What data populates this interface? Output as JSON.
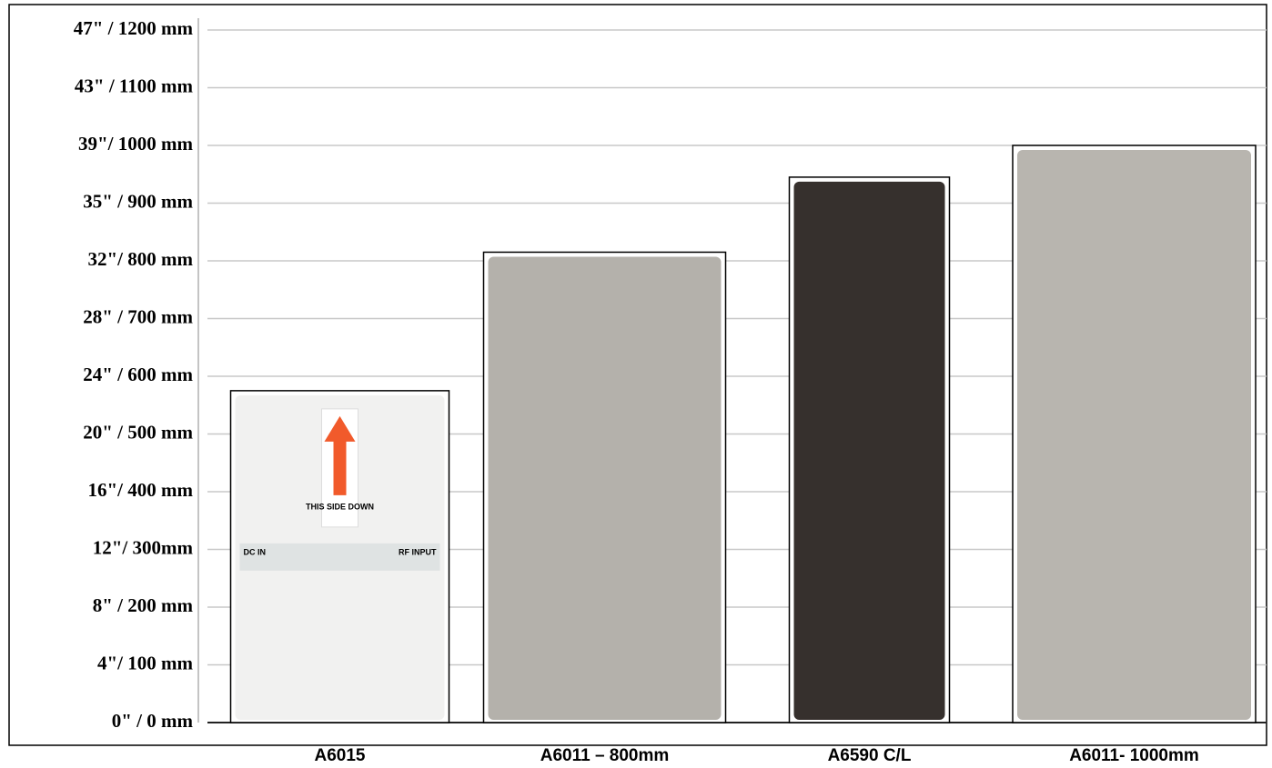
{
  "chart_data": {
    "type": "bar",
    "categories": [
      "A6015",
      "A6011 – 800mm",
      "A6590 C/L",
      "A6011- 1000mm"
    ],
    "values": [
      575,
      815,
      945,
      1000
    ],
    "colors": [
      "#f1f1f0",
      "#b4b1ab",
      "#36302d",
      "#b8b5af"
    ],
    "ylim": [
      0,
      1200
    ],
    "yticks": [
      {
        "value": 0,
        "label": "0\" / 0 mm"
      },
      {
        "value": 100,
        "label": "4\"/ 100 mm"
      },
      {
        "value": 200,
        "label": "8\" / 200 mm"
      },
      {
        "value": 300,
        "label": "12\"/ 300mm"
      },
      {
        "value": 400,
        "label": "16\"/ 400 mm"
      },
      {
        "value": 500,
        "label": "20\" / 500 mm"
      },
      {
        "value": 600,
        "label": "24\" / 600 mm"
      },
      {
        "value": 700,
        "label": "28\" / 700 mm"
      },
      {
        "value": 800,
        "label": "32\"/ 800 mm"
      },
      {
        "value": 900,
        "label": "35\" / 900 mm"
      },
      {
        "value": 1000,
        "label": "39\"/ 1000 mm"
      },
      {
        "value": 1100,
        "label": "43\" / 1100 mm"
      },
      {
        "value": 1200,
        "label": "47\" / 1200 mm"
      }
    ],
    "grid": true,
    "annotations": [
      "THIS SIDE DOWN",
      "DC IN",
      "RF INPUT"
    ]
  }
}
